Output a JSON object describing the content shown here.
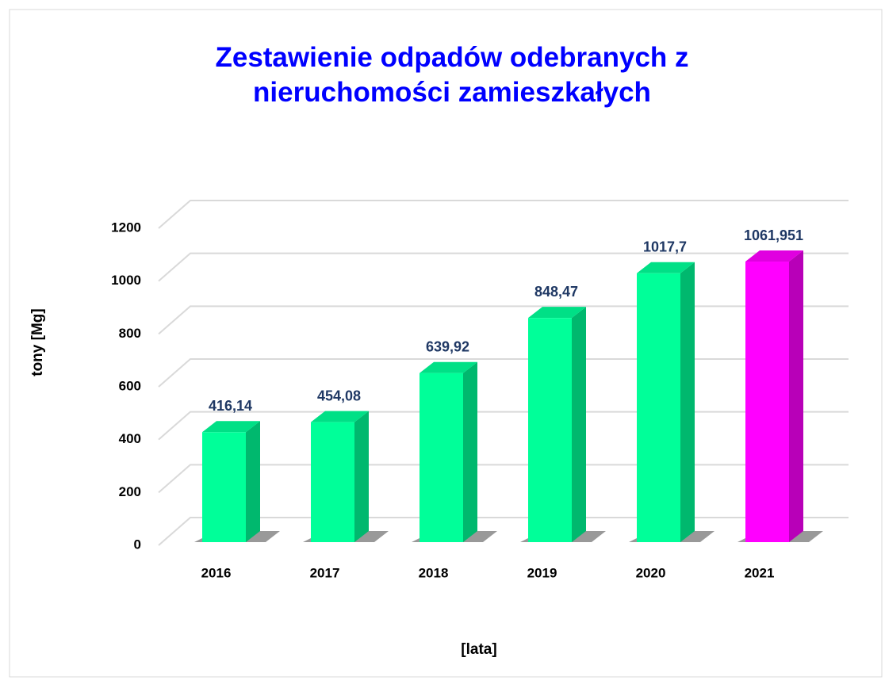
{
  "chart_data": {
    "type": "bar3d",
    "title": "Zestawienie odpadów odebranych z nieruchomości zamieszkałych",
    "y_label": "tony [Mg]",
    "x_label": "[lata]",
    "categories": [
      "2016",
      "2017",
      "2018",
      "2019",
      "2020",
      "2021"
    ],
    "values": [
      416.14,
      454.08,
      639.92,
      848.47,
      1017.7,
      1061.951
    ],
    "value_labels": [
      "416,14",
      "454,08",
      "639,92",
      "848,47",
      "1017,7",
      "1061,951"
    ],
    "colors": [
      "#00ff99",
      "#00ff99",
      "#00ff99",
      "#00ff99",
      "#00ff99",
      "#ff00ff"
    ],
    "ylim": [
      0,
      1200
    ],
    "yticks": [
      0,
      200,
      400,
      600,
      800,
      1000,
      1200
    ],
    "grid": true
  }
}
